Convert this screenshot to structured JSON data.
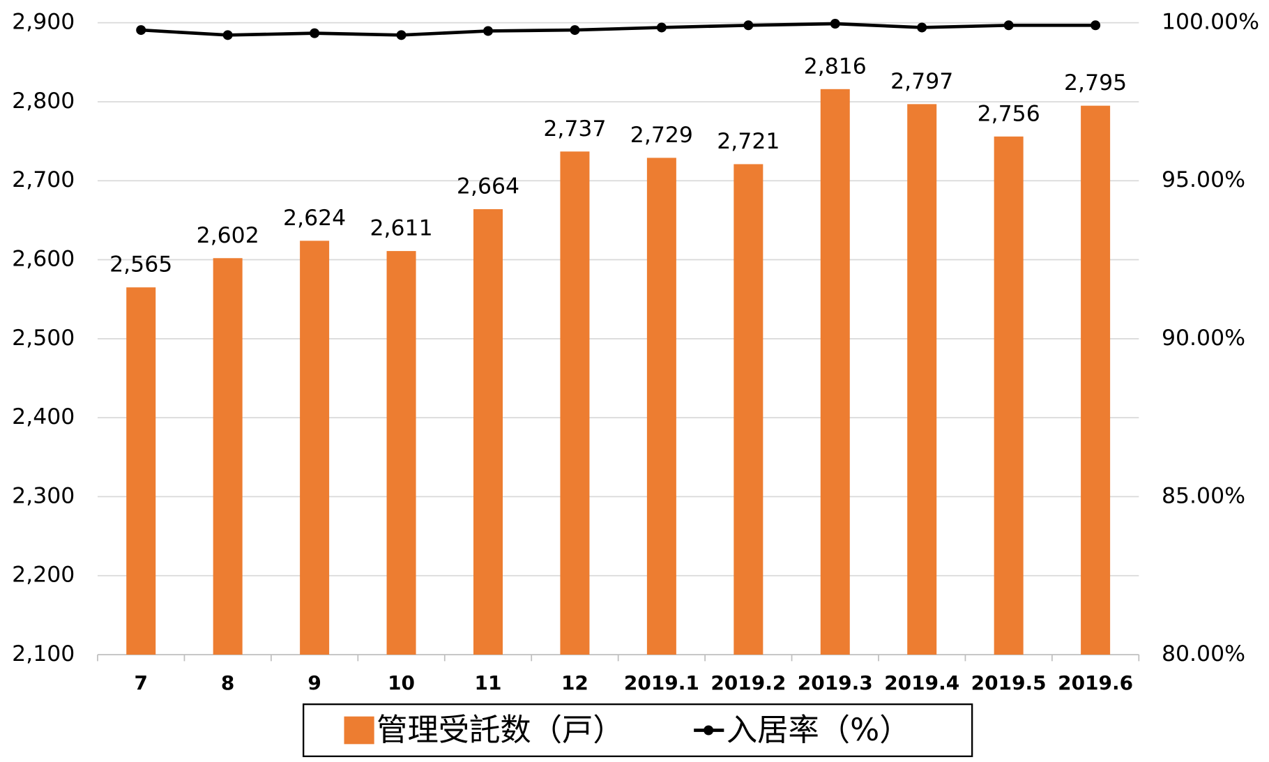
{
  "chart_data": {
    "type": "bar-line",
    "categories": [
      "7",
      "8",
      "9",
      "10",
      "11",
      "12",
      "2019.1",
      "2019.2",
      "2019.3",
      "2019.4",
      "2019.5",
      "2019.6"
    ],
    "series": [
      {
        "name": "管理受託数（戸）",
        "type": "bar",
        "color": "#ed7d31",
        "values": [
          2565,
          2602,
          2624,
          2611,
          2664,
          2737,
          2729,
          2721,
          2816,
          2797,
          2756,
          2795
        ],
        "value_labels": [
          "2,565",
          "2,602",
          "2,624",
          "2,611",
          "2,664",
          "2,737",
          "2,729",
          "2,721",
          "2,816",
          "2,797",
          "2,756",
          "2,795"
        ]
      },
      {
        "name": "入居率（%）",
        "type": "line",
        "axis": "y2",
        "color": "#000000",
        "values": [
          99.77,
          99.61,
          99.67,
          99.61,
          99.74,
          99.77,
          99.85,
          99.92,
          99.97,
          99.85,
          99.92,
          99.92
        ]
      }
    ],
    "ylim": [
      2100,
      2900
    ],
    "yticks": [
      {
        "value": 2100,
        "label": "2,100"
      },
      {
        "value": 2200,
        "label": "2,200"
      },
      {
        "value": 2300,
        "label": "2,300"
      },
      {
        "value": 2400,
        "label": "2,400"
      },
      {
        "value": 2500,
        "label": "2,500"
      },
      {
        "value": 2600,
        "label": "2,600"
      },
      {
        "value": 2700,
        "label": "2,700"
      },
      {
        "value": 2800,
        "label": "2,800"
      },
      {
        "value": 2900,
        "label": "2,900"
      }
    ],
    "y2lim": [
      80,
      100
    ],
    "y2ticks": [
      {
        "value": 80,
        "label": "80.00%"
      },
      {
        "value": 85,
        "label": "85.00%"
      },
      {
        "value": 90,
        "label": "90.00%"
      },
      {
        "value": 95,
        "label": "95.00%"
      },
      {
        "value": 100,
        "label": "100.00%"
      }
    ],
    "grid": true
  }
}
